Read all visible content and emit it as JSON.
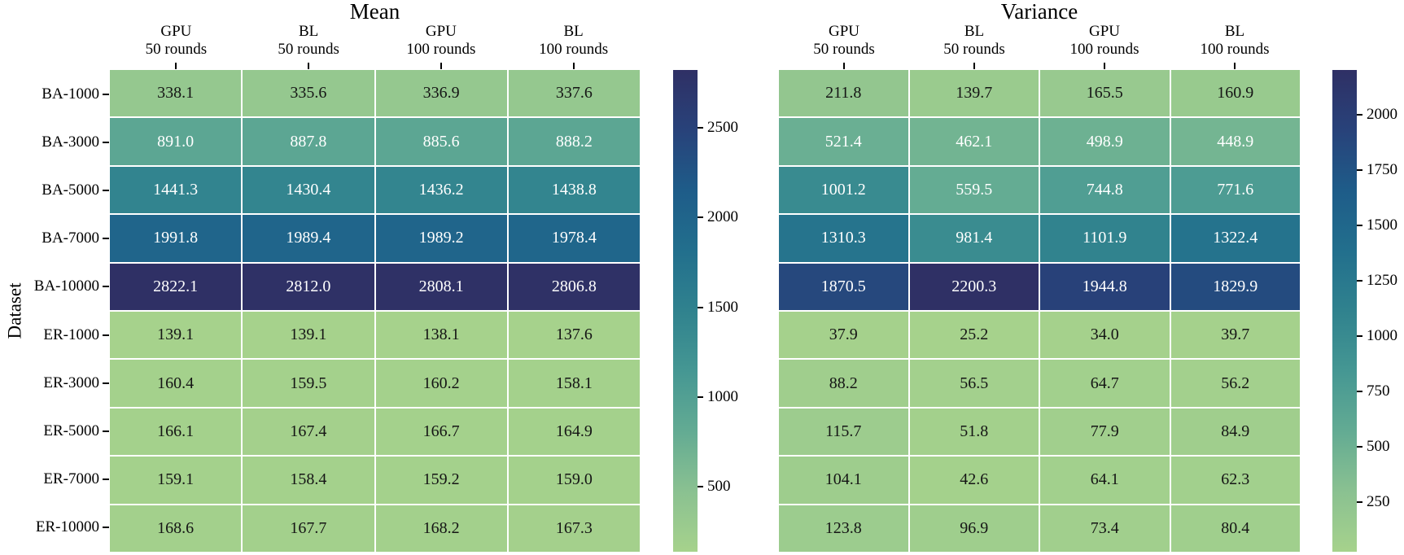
{
  "chart_data": [
    {
      "type": "heatmap",
      "title": "Mean",
      "ylabel": "Dataset",
      "rows": [
        "BA-1000",
        "BA-3000",
        "BA-5000",
        "BA-7000",
        "BA-10000",
        "ER-1000",
        "ER-3000",
        "ER-5000",
        "ER-7000",
        "ER-10000"
      ],
      "columns": [
        "GPU\n50 rounds",
        "BL\n50 rounds",
        "GPU\n100 rounds",
        "BL\n100 rounds"
      ],
      "values": [
        [
          338.1,
          335.6,
          336.9,
          337.6
        ],
        [
          891.0,
          887.8,
          885.6,
          888.2
        ],
        [
          1441.3,
          1430.4,
          1436.2,
          1438.8
        ],
        [
          1991.8,
          1989.4,
          1989.2,
          1978.4
        ],
        [
          2822.1,
          2812.0,
          2808.1,
          2806.8
        ],
        [
          139.1,
          139.1,
          138.1,
          137.6
        ],
        [
          160.4,
          159.5,
          160.2,
          158.1
        ],
        [
          166.1,
          167.4,
          166.7,
          164.9
        ],
        [
          159.1,
          158.4,
          159.2,
          159.0
        ],
        [
          168.6,
          167.7,
          168.2,
          167.3
        ]
      ],
      "vmin": 137.6,
      "vmax": 2822.1,
      "colorbar_ticks": [
        2500,
        2000,
        1500,
        1000,
        500
      ],
      "show_row_labels": true
    },
    {
      "type": "heatmap",
      "title": "Variance",
      "ylabel": "Dataset",
      "rows": [
        "BA-1000",
        "BA-3000",
        "BA-5000",
        "BA-7000",
        "BA-10000",
        "ER-1000",
        "ER-3000",
        "ER-5000",
        "ER-7000",
        "ER-10000"
      ],
      "columns": [
        "GPU\n50 rounds",
        "BL\n50 rounds",
        "GPU\n100 rounds",
        "BL\n100 rounds"
      ],
      "values": [
        [
          211.8,
          139.7,
          165.5,
          160.9
        ],
        [
          521.4,
          462.1,
          498.9,
          448.9
        ],
        [
          1001.2,
          559.5,
          744.8,
          771.6
        ],
        [
          1310.3,
          981.4,
          1101.9,
          1322.4
        ],
        [
          1870.5,
          2200.3,
          1944.8,
          1829.9
        ],
        [
          37.9,
          25.2,
          34.0,
          39.7
        ],
        [
          88.2,
          56.5,
          64.7,
          56.2
        ],
        [
          115.7,
          51.8,
          77.9,
          84.9
        ],
        [
          104.1,
          42.6,
          64.1,
          62.3
        ],
        [
          123.8,
          96.9,
          73.4,
          80.4
        ]
      ],
      "vmin": 25.2,
      "vmax": 2200.3,
      "colorbar_ticks": [
        2000,
        1750,
        1500,
        1250,
        1000,
        750,
        500,
        250
      ],
      "show_row_labels": false
    }
  ],
  "style": {
    "colormap_name": "crest",
    "colormap_stops": [
      [
        0.0,
        "#a6d28c"
      ],
      [
        0.125,
        "#8ac191"
      ],
      [
        0.25,
        "#63ab93"
      ],
      [
        0.375,
        "#459793"
      ],
      [
        0.5,
        "#30828e"
      ],
      [
        0.625,
        "#226f8d"
      ],
      [
        0.75,
        "#1e5c89"
      ],
      [
        0.875,
        "#28427a"
      ],
      [
        1.0,
        "#2f3065"
      ]
    ],
    "annotation_dark": "#151515",
    "annotation_light": "#ffffff",
    "grid_line": "#ffffff",
    "tick_color": "#000000"
  }
}
